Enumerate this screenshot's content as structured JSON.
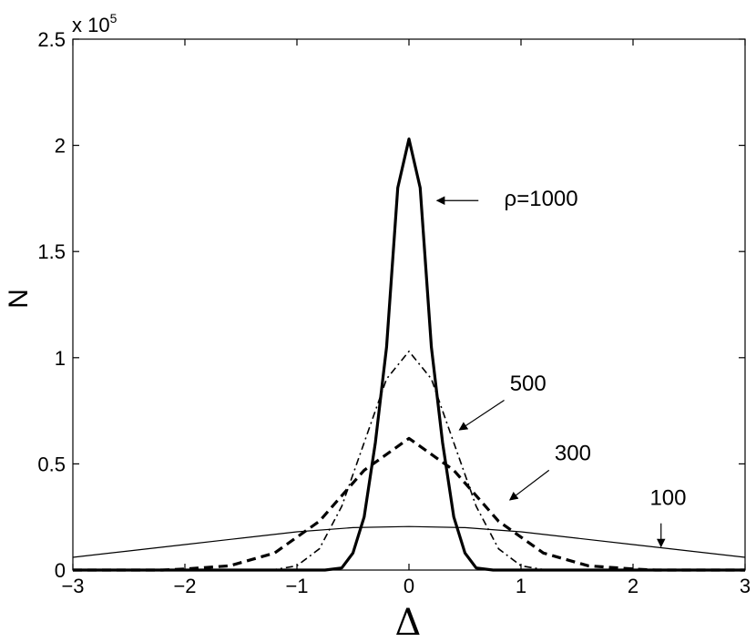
{
  "chart_data": {
    "type": "line",
    "xlabel": "Δ",
    "ylabel": "N",
    "y_multiplier": {
      "base": "x 10",
      "exp": "5"
    },
    "xlim": [
      -3,
      3
    ],
    "ylim": [
      0,
      2.5
    ],
    "xticks": [
      -3,
      -2,
      -1,
      0,
      1,
      2,
      3
    ],
    "xtick_labels": [
      "−3",
      "−2",
      "−1",
      "0",
      "1",
      "2",
      "3"
    ],
    "yticks": [
      0,
      0.5,
      1,
      1.5,
      2,
      2.5
    ],
    "ytick_labels": [
      "0",
      "0.5",
      "1",
      "1.5",
      "2",
      "2.5"
    ],
    "grid": false,
    "series": [
      {
        "label": "ρ=1000",
        "style": "solid-thick",
        "x": [
          -3,
          -0.9,
          -0.75,
          -0.6,
          -0.5,
          -0.4,
          -0.3,
          -0.2,
          -0.1,
          0,
          0.1,
          0.2,
          0.3,
          0.4,
          0.5,
          0.6,
          0.75,
          0.9,
          3
        ],
        "y": [
          0,
          0,
          0,
          0.01,
          0.08,
          0.25,
          0.6,
          1.05,
          1.8,
          2.03,
          1.8,
          1.05,
          0.6,
          0.25,
          0.08,
          0.01,
          0,
          0,
          0
        ]
      },
      {
        "label": "500",
        "style": "dash-dot",
        "x": [
          -3,
          -1.5,
          -1.2,
          -1.0,
          -0.8,
          -0.6,
          -0.4,
          -0.2,
          0,
          0.2,
          0.4,
          0.6,
          0.8,
          1.0,
          1.2,
          1.5,
          3
        ],
        "y": [
          0,
          0,
          0.002,
          0.02,
          0.1,
          0.3,
          0.6,
          0.9,
          1.03,
          0.9,
          0.6,
          0.3,
          0.1,
          0.02,
          0.002,
          0,
          0
        ]
      },
      {
        "label": "300",
        "style": "dashed-thick",
        "x": [
          -3,
          -2.2,
          -2.0,
          -1.6,
          -1.2,
          -0.8,
          -0.4,
          0,
          0.4,
          0.8,
          1.2,
          1.6,
          2.0,
          2.2,
          3
        ],
        "y": [
          0,
          0,
          0.005,
          0.02,
          0.08,
          0.23,
          0.47,
          0.62,
          0.47,
          0.23,
          0.08,
          0.02,
          0.005,
          0,
          0
        ]
      },
      {
        "label": "100",
        "style": "solid-thin",
        "x": [
          -3,
          -2.5,
          -2,
          -1.5,
          -1,
          -0.5,
          0,
          0.5,
          1,
          1.5,
          2,
          2.5,
          3
        ],
        "y": [
          0.06,
          0.09,
          0.12,
          0.15,
          0.18,
          0.2,
          0.205,
          0.2,
          0.18,
          0.15,
          0.12,
          0.09,
          0.06
        ]
      }
    ],
    "annotations": [
      {
        "text": "ρ=1000",
        "text_pos": [
          0.85,
          1.75
        ],
        "arrow_from": [
          0.62,
          1.74
        ],
        "arrow_to": [
          0.25,
          1.74
        ]
      },
      {
        "text": "500",
        "text_pos": [
          0.9,
          0.88
        ],
        "arrow_from": [
          0.85,
          0.8
        ],
        "arrow_to": [
          0.45,
          0.66
        ]
      },
      {
        "text": "300",
        "text_pos": [
          1.3,
          0.55
        ],
        "arrow_from": [
          1.25,
          0.47
        ],
        "arrow_to": [
          0.9,
          0.33
        ]
      },
      {
        "text": "100",
        "text_pos": [
          2.15,
          0.34
        ],
        "arrow_from": [
          2.25,
          0.22
        ],
        "arrow_to": [
          2.25,
          0.11
        ]
      }
    ]
  }
}
